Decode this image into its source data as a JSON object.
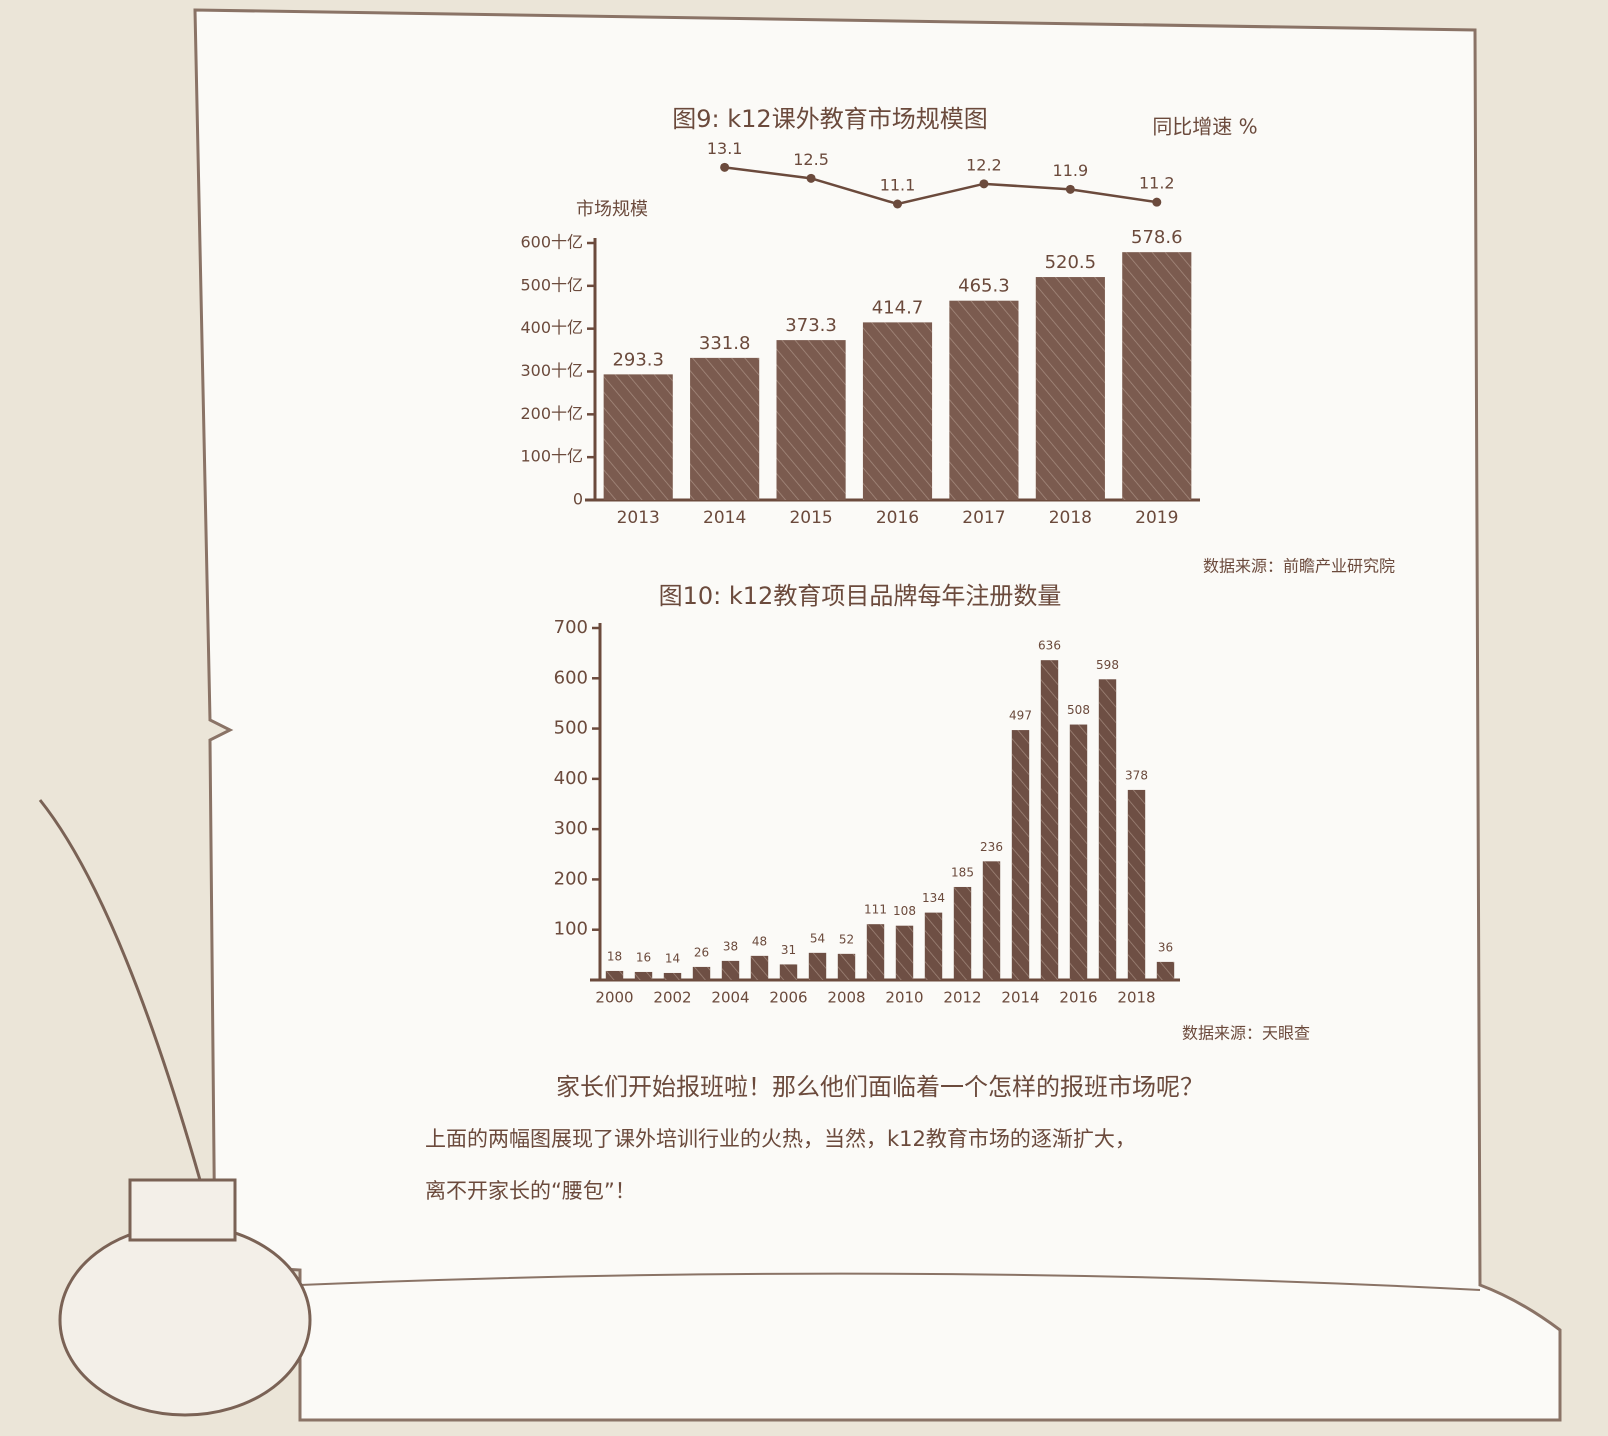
{
  "chart_data": [
    {
      "type": "bar",
      "title": "图9: k12课外教育市场规模图",
      "source": "数据来源：前瞻产业研究院",
      "y_label": "市场规模",
      "categories": [
        "2013",
        "2014",
        "2015",
        "2016",
        "2017",
        "2018",
        "2019"
      ],
      "series": [
        {
          "type": "bar",
          "color": "#7b5b4f",
          "values": [
            293.3,
            331.8,
            373.3,
            414.7,
            465.3,
            520.5,
            578.6
          ]
        },
        {
          "type": "line",
          "name": "同比增速 %",
          "color": "#6b4a3c",
          "axis": "y2",
          "values": [
            null,
            13.1,
            12.5,
            11.1,
            12.2,
            11.9,
            11.2
          ]
        }
      ],
      "ylim": [
        0,
        600
      ],
      "yticks": [
        0,
        {
          "value": 100,
          "label": "100十亿"
        },
        {
          "value": 200,
          "label": "200十亿"
        },
        {
          "value": 300,
          "label": "300十亿"
        },
        {
          "value": 400,
          "label": "400十亿"
        },
        {
          "value": 500,
          "label": "500十亿"
        },
        {
          "value": 600,
          "label": "600十亿"
        }
      ],
      "y2lim": [
        10.5,
        13.5
      ]
    },
    {
      "type": "bar",
      "title": "图10: k12教育项目品牌每年注册数量",
      "source": "数据来源：天眼查",
      "categories": [
        "2000",
        null,
        "2002",
        null,
        "2004",
        null,
        "2006",
        null,
        "2008",
        null,
        "2010",
        null,
        "2012",
        null,
        "2014",
        null,
        "2016",
        null,
        "2018",
        null
      ],
      "series": [
        {
          "type": "bar",
          "color": "#6e4f44",
          "values": [
            18,
            16,
            14,
            26,
            38,
            48,
            31,
            54,
            52,
            111,
            108,
            134,
            185,
            236,
            497,
            636,
            508,
            598,
            378,
            36
          ]
        }
      ],
      "ylim": [
        0,
        700
      ],
      "yticks": [
        100,
        200,
        300,
        400,
        500,
        600,
        700
      ]
    }
  ],
  "text": {
    "heading": "家长们开始报班啦！那么他们面临着一个怎样的报班市场呢？",
    "body": [
      "上面的两幅图展现了课外培训行业的火热，当然，k12教育市场的逐渐扩大，",
      "离不开家长的“腰包”！"
    ]
  }
}
